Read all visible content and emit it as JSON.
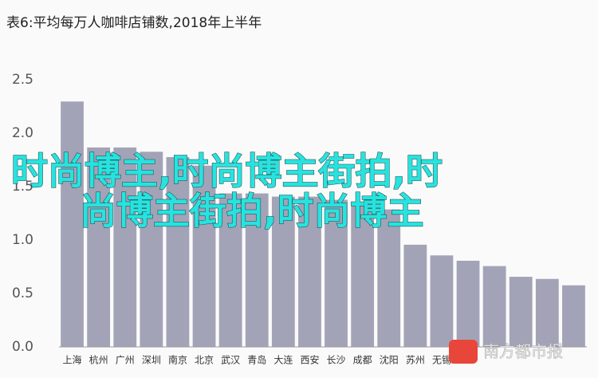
{
  "chart_data": {
    "type": "bar",
    "title": "表6:平均每万人咖啡店铺数,2018年上半年",
    "categories": [
      "上海",
      "杭州",
      "广州",
      "深圳",
      "南京",
      "北京",
      "武汉",
      "青岛",
      "大连",
      "西安",
      "长沙",
      "成都",
      "沈阳",
      "苏州",
      "无锡",
      null,
      null,
      null,
      null,
      null
    ],
    "values": [
      2.3,
      1.87,
      1.87,
      1.83,
      1.78,
      1.7,
      1.44,
      1.44,
      1.41,
      1.41,
      1.38,
      1.34,
      1.29,
      0.96,
      0.86,
      0.81,
      0.76,
      0.66,
      0.64,
      0.58
    ],
    "color": "#a3a3b8",
    "ylim": [
      0,
      2.5
    ],
    "yticks": [
      {
        "value": 0,
        "label": "0.0"
      },
      0.5,
      {
        "value": 1,
        "label": "1.0"
      },
      1.5,
      {
        "value": 2,
        "label": "2.0"
      },
      2.5
    ],
    "grid": false,
    "annotations": [
      "时尚博主,时尚博主街拍,时",
      "尚博主街拍,时尚博主",
      "南方都市报"
    ]
  }
}
